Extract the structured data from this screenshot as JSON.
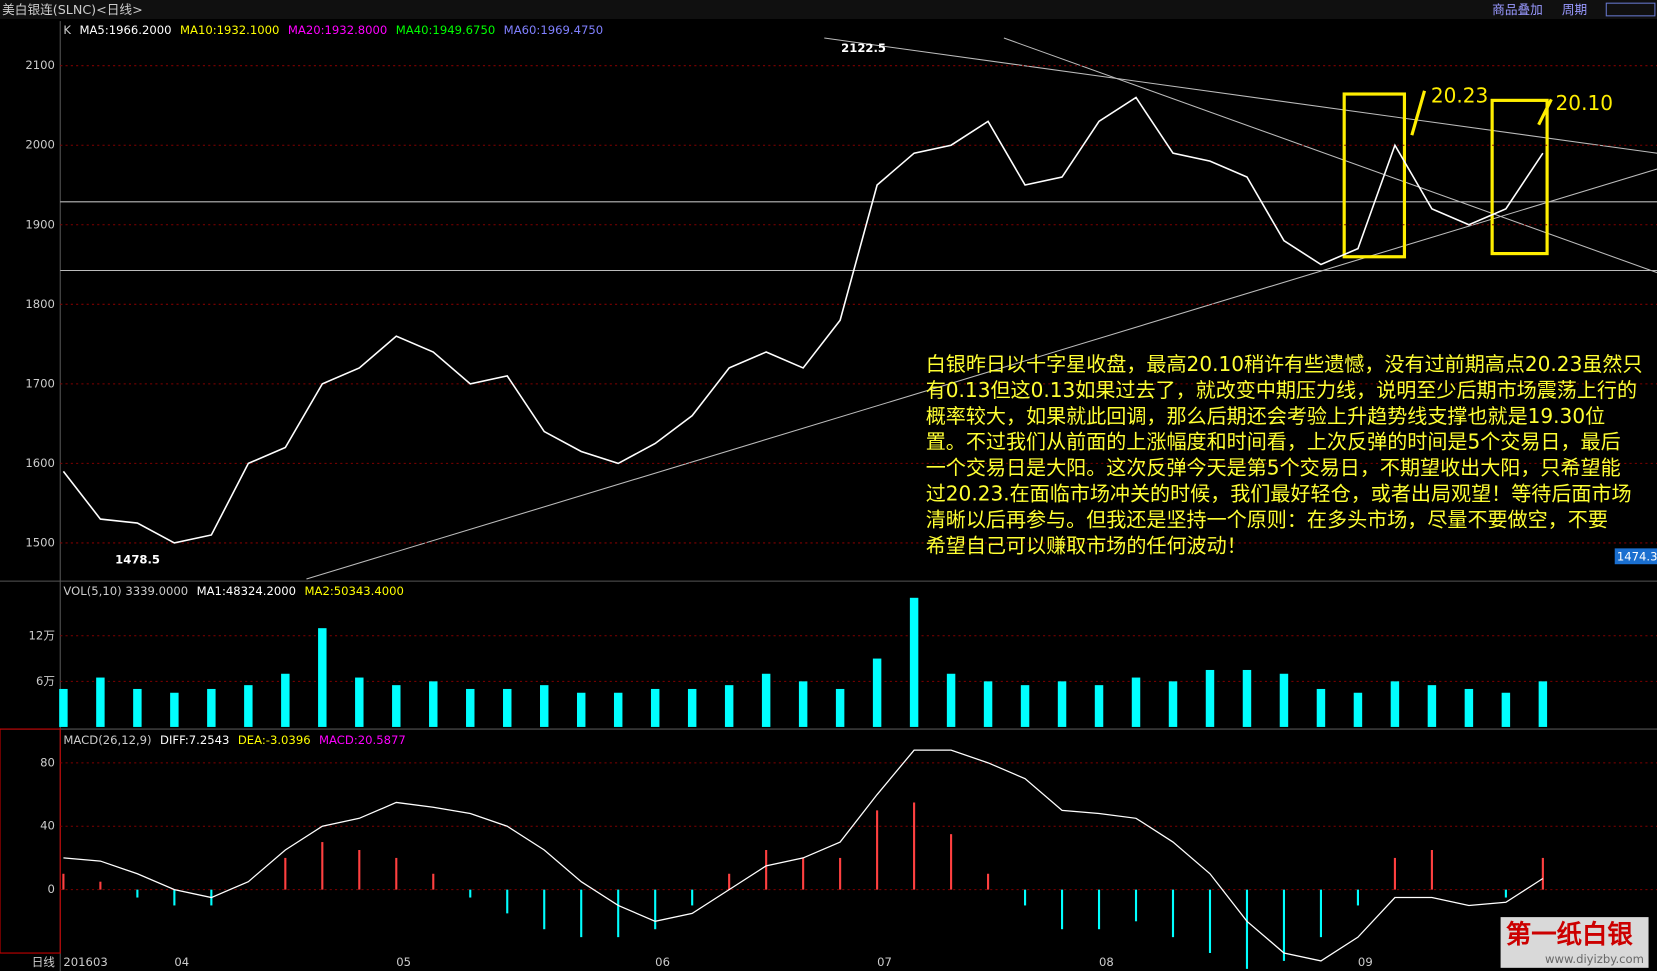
{
  "header": {
    "title": "美白银连(SLNC)<日线>",
    "overlay_button": "商品叠加",
    "period_button": "周期",
    "period_label": "日线"
  },
  "chart_data": [
    {
      "type": "line",
      "legend": [
        "K",
        "MA5:1966.2000",
        "MA10:1932.1000",
        "MA20:1932.8000",
        "MA40:1949.6750",
        "MA60:1969.4750"
      ],
      "legend_colors": [
        "#cccccc",
        "#ffffff",
        "#ffff00",
        "#ff00ff",
        "#00ff00",
        "#8080ff"
      ],
      "color": "#ffffff",
      "ylim": [
        1452,
        2156
      ],
      "yticks": [
        1500,
        1600,
        1700,
        1800,
        1900,
        2000,
        2100
      ],
      "grid": true,
      "values": [
        1590,
        1530,
        1525,
        1500,
        1510,
        1600,
        1620,
        1700,
        1720,
        1760,
        1740,
        1700,
        1710,
        1640,
        1615,
        1600,
        1625,
        1660,
        1720,
        1740,
        1720,
        1780,
        1950,
        1990,
        2000,
        2030,
        1950,
        1960,
        2030,
        2060,
        1990,
        1980,
        1960,
        1880,
        1850,
        1870,
        2000,
        1920,
        1900,
        1920,
        1990
      ],
      "annotations": [
        "2122.5",
        "1478.5",
        "20.23",
        "20.10",
        "1474.3"
      ],
      "commentary": [
        "白银昨日以十字星收盘，最高20.10稍许有些遗憾，没有过前期高点20.23虽然只",
        "有0.13但这0.13如果过去了，就改变中期压力线，说明至少后期市场震荡上行的",
        "概率较大，如果就此回调，那么后期还会考验上升趋势线支撑也就是19.30位",
        "置。不过我们从前面的上涨幅度和时间看，上次反弹的时间是5个交易日，最后",
        "一个交易日是大阳。这次反弹今天是第5个交易日，不期望收出大阳，只希望能",
        "过20.23.在面临市场冲关的时候，我们最好轻仓，或者出局观望！等待后面市场",
        "清晰以后再参与。但我还是坚持一个原则：在多头市场，尽量不要做空，不要",
        "希望自己可以赚取市场的任何波动！"
      ]
    },
    {
      "type": "bar",
      "legend": [
        "VOL(5,10) 3339.0000",
        "MA1:48324.2000",
        "MA2:50343.4000"
      ],
      "legend_colors": [
        "#cccccc",
        "#ffffff",
        "#ffff00"
      ],
      "color": "#00ffff",
      "ylim": [
        0,
        18.5
      ],
      "yticks": [
        {
          "value": 6,
          "label": "6万"
        },
        {
          "value": 12,
          "label": "12万"
        }
      ],
      "grid": true,
      "values": [
        5,
        6.5,
        5,
        4.5,
        5,
        5.5,
        7,
        13,
        6.5,
        5.5,
        6,
        5,
        5,
        5.5,
        4.5,
        4.5,
        5,
        5,
        5.5,
        7,
        6,
        5,
        9,
        17,
        7,
        6,
        5.5,
        6,
        5.5,
        6.5,
        6,
        7.5,
        7.5,
        7,
        5,
        4.5,
        6,
        5.5,
        5,
        4.5,
        6
      ]
    },
    {
      "type": "macd",
      "legend": [
        "MACD(26,12,9)",
        "DIFF:7.2543",
        "DEA:-3.0396",
        "MACD:20.5877"
      ],
      "legend_colors": [
        "#cccccc",
        "#ffffff",
        "#ffff00",
        "#ff00ff"
      ],
      "color": "#ffffff",
      "ylim": [
        -38.7,
        100
      ],
      "yticks": [
        0,
        40,
        80
      ],
      "grid": true,
      "categories": [
        "201603",
        null,
        null,
        "04",
        null,
        null,
        null,
        null,
        null,
        "05",
        null,
        null,
        null,
        null,
        null,
        null,
        "06",
        null,
        null,
        null,
        null,
        null,
        "07",
        null,
        null,
        null,
        null,
        null,
        "08",
        null,
        null,
        null,
        null,
        null,
        null,
        "09",
        null,
        null,
        null,
        null,
        null
      ],
      "values": [
        20,
        18,
        10,
        0,
        -5,
        5,
        25,
        40,
        45,
        55,
        52,
        48,
        40,
        25,
        5,
        -10,
        -20,
        -15,
        0,
        15,
        20,
        30,
        60,
        88,
        88,
        80,
        70,
        50,
        48,
        45,
        30,
        10,
        -20,
        -40,
        -45,
        -30,
        -5,
        -5,
        -10,
        -8,
        7
      ],
      "histogram": [
        10,
        5,
        -5,
        -10,
        -10,
        0,
        20,
        30,
        25,
        20,
        10,
        -5,
        -15,
        -25,
        -30,
        -30,
        -25,
        -10,
        10,
        25,
        20,
        20,
        50,
        55,
        35,
        10,
        -10,
        -25,
        -25,
        -20,
        -30,
        -40,
        -50,
        -45,
        -30,
        -10,
        20,
        25,
        0,
        -5,
        20
      ],
      "up_color": "#ff4040",
      "down_color": "#00ffff"
    }
  ],
  "watermark": {
    "name": "第一纸白银",
    "url": "www.diyizby.com"
  }
}
